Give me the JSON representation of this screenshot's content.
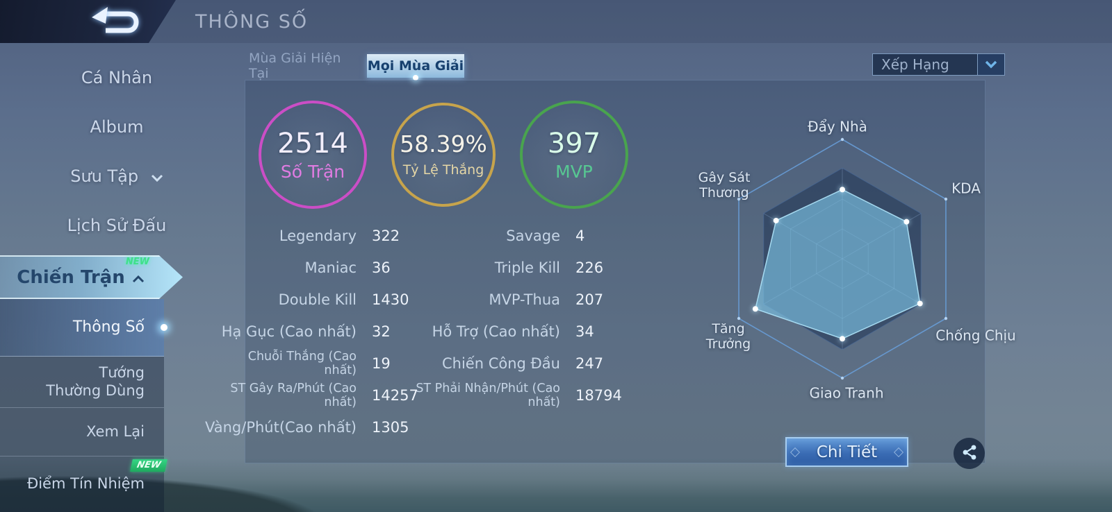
{
  "header": {
    "title": "THÔNG SỐ"
  },
  "sidebar": {
    "items": [
      {
        "label": "Cá Nhân"
      },
      {
        "label": "Album"
      },
      {
        "label": "Sưu Tập",
        "chevron": "down"
      },
      {
        "label": "Lịch Sử Đấu"
      },
      {
        "label": "Chiến Trận",
        "chevron": "up",
        "badge": "NEW",
        "active": true
      }
    ],
    "submenu": [
      {
        "label": "Thông Số",
        "active": true
      },
      {
        "label": "Tướng Thường Dùng"
      },
      {
        "label": "Xem Lại"
      },
      {
        "label": "Điểm Tín Nhiệm",
        "badge": "NEW"
      }
    ]
  },
  "tabs": [
    {
      "label": "Mùa Giải Hiện Tại",
      "active": false
    },
    {
      "label": "Mọi Mùa Giải",
      "active": true
    }
  ],
  "filter_dropdown": {
    "value": "Xếp Hạng"
  },
  "summary_circles": [
    {
      "value": "2514",
      "label": "Số Trận",
      "ring_color": "#cb4ec6",
      "label_color": "#e07ce2",
      "value_color": "#f2eefc"
    },
    {
      "value": "58.39%",
      "label": "Tỷ Lệ Thắng",
      "ring_color": "#c7a44c",
      "label_color": "#e6d7a6",
      "value_color": "#f5f2e8"
    },
    {
      "value": "397",
      "label": "MVP",
      "ring_color": "#49a44e",
      "label_color": "#57c892",
      "value_color": "#d9fbe9"
    }
  ],
  "stats_left": [
    {
      "label": "Legendary",
      "value": "322"
    },
    {
      "label": "Maniac",
      "value": "36"
    },
    {
      "label": "Double Kill",
      "value": "1430"
    },
    {
      "label": "Hạ Gục (Cao nhất)",
      "value": "32"
    },
    {
      "label": "Chuỗi Thắng (Cao nhất)",
      "value": "19"
    },
    {
      "label": "ST Gây Ra/Phút (Cao nhất)",
      "value": "14257"
    },
    {
      "label": "Vàng/Phút(Cao nhất)",
      "value": "1305"
    }
  ],
  "stats_right": [
    {
      "label": "Savage",
      "value": "4"
    },
    {
      "label": "Triple Kill",
      "value": "226"
    },
    {
      "label": "MVP-Thua",
      "value": "207"
    },
    {
      "label": "Hỗ Trợ (Cao nhất)",
      "value": "34"
    },
    {
      "label": "Chiến Công Đầu",
      "value": "247"
    },
    {
      "label": "ST Phải Nhận/Phút (Cao nhất)",
      "value": "18794"
    }
  ],
  "chart_data": {
    "type": "radar",
    "categories": [
      "Đẩy Nhà",
      "KDA",
      "Chống Chịu",
      "Giao Tranh",
      "Tăng Trưởng",
      "Gây Sát Thương"
    ],
    "values": [
      58,
      62,
      75,
      67,
      84,
      64
    ],
    "max": 100,
    "grid_levels": [
      100,
      76,
      50,
      25
    ],
    "fill_color": "#7ec6e8",
    "legend_position": "none"
  },
  "footer": {
    "detail_button": "Chi Tiết",
    "share_icon": "share"
  }
}
